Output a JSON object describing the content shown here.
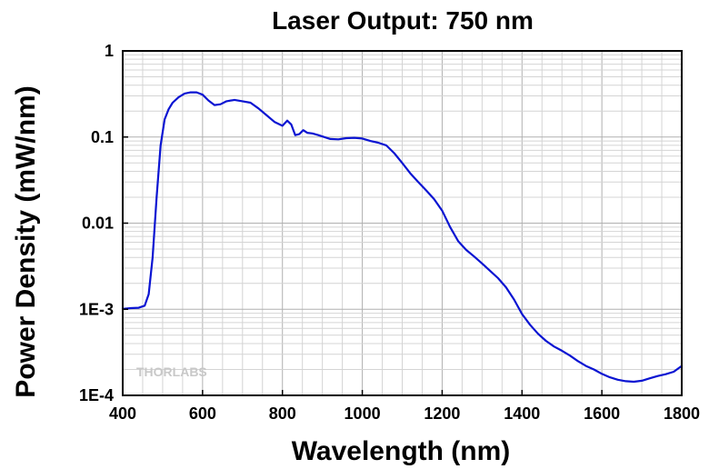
{
  "chart_data": {
    "type": "line",
    "title": "Laser Output: 750 nm",
    "xlabel": "Wavelength (nm)",
    "ylabel": "Power Density (mW/nm)",
    "xlim": [
      400,
      1800
    ],
    "ylim": [
      0.0001,
      1
    ],
    "yscale": "log",
    "grid": true,
    "x_ticks": [
      400,
      600,
      800,
      1000,
      1200,
      1400,
      1600,
      1800
    ],
    "x_tick_labels": [
      "400",
      "600",
      "800",
      "1000",
      "1200",
      "1400",
      "1600",
      "1800"
    ],
    "y_ticks": [
      0.0001,
      0.001,
      0.01,
      0.1,
      1
    ],
    "y_tick_labels": [
      "1E-4",
      "1E-3",
      "0.01",
      "0.1",
      "1"
    ],
    "line_color": "#0a14d2",
    "logo_text": "THORLABS",
    "series": [
      {
        "x": [
          400,
          420,
          440,
          455,
          465,
          475,
          485,
          495,
          505,
          515,
          525,
          540,
          555,
          570,
          585,
          600,
          615,
          630,
          645,
          660,
          680,
          700,
          720,
          740,
          760,
          780,
          800,
          812,
          822,
          832,
          842,
          852,
          862,
          875,
          890,
          905,
          920,
          940,
          960,
          980,
          1000,
          1020,
          1040,
          1060,
          1080,
          1100,
          1120,
          1140,
          1160,
          1180,
          1200,
          1220,
          1240,
          1260,
          1280,
          1300,
          1320,
          1340,
          1360,
          1380,
          1400,
          1420,
          1440,
          1460,
          1480,
          1500,
          1520,
          1540,
          1560,
          1580,
          1600,
          1620,
          1640,
          1660,
          1680,
          1700,
          1720,
          1740,
          1760,
          1780,
          1800
        ],
        "y": [
          0.00101,
          0.00103,
          0.00104,
          0.0011,
          0.0015,
          0.004,
          0.02,
          0.08,
          0.16,
          0.21,
          0.25,
          0.29,
          0.32,
          0.33,
          0.33,
          0.31,
          0.265,
          0.235,
          0.24,
          0.26,
          0.27,
          0.26,
          0.25,
          0.215,
          0.18,
          0.15,
          0.135,
          0.155,
          0.14,
          0.105,
          0.108,
          0.12,
          0.112,
          0.11,
          0.105,
          0.1,
          0.095,
          0.094,
          0.097,
          0.098,
          0.096,
          0.09,
          0.086,
          0.08,
          0.065,
          0.05,
          0.038,
          0.03,
          0.024,
          0.019,
          0.014,
          0.009,
          0.0062,
          0.0049,
          0.0041,
          0.0034,
          0.0028,
          0.0023,
          0.0018,
          0.0013,
          0.00088,
          0.00066,
          0.00052,
          0.00043,
          0.00037,
          0.00033,
          0.00029,
          0.00025,
          0.00022,
          0.0002,
          0.000178,
          0.000162,
          0.000152,
          0.000146,
          0.000144,
          0.000148,
          0.000158,
          0.000168,
          0.000176,
          0.000188,
          0.00022
        ]
      }
    ]
  }
}
